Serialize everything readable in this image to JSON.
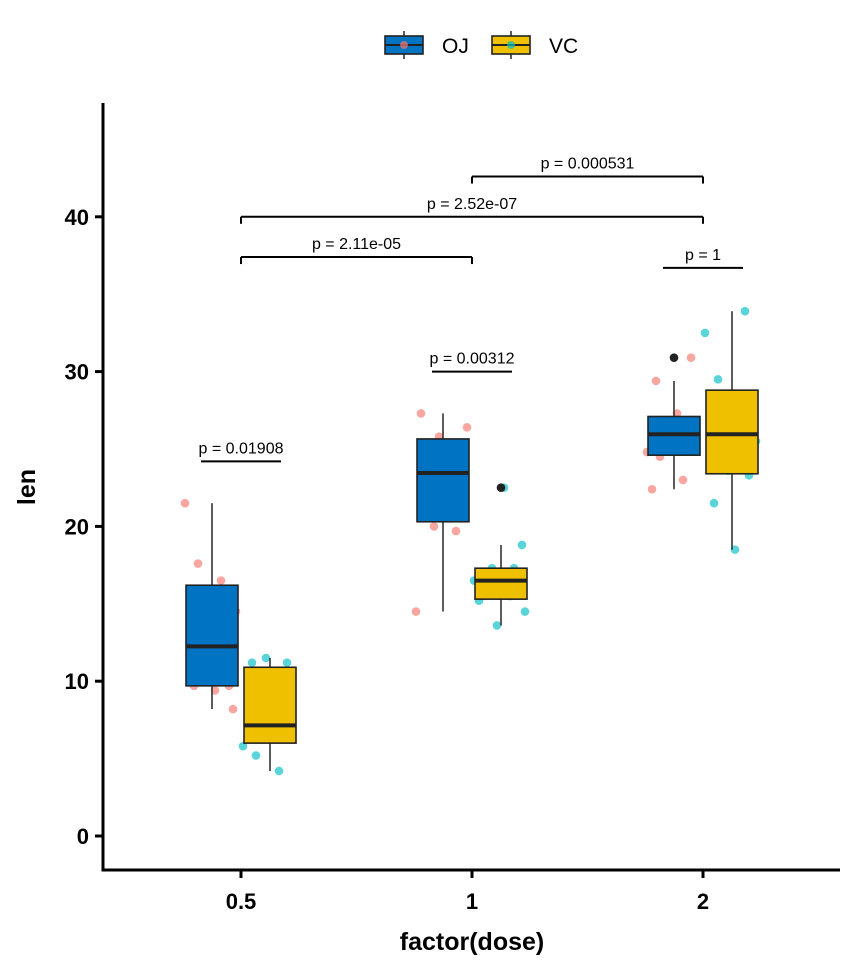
{
  "chart_data": {
    "type": "boxplot",
    "title": "",
    "xlabel": "factor(dose)",
    "ylabel": "len",
    "ylim": [
      -2.2,
      47.5
    ],
    "yticks": [
      0,
      10,
      20,
      30,
      40
    ],
    "categories": [
      "0.5",
      "1",
      "2"
    ],
    "legend_position": "top",
    "series": [
      {
        "name": "OJ",
        "fill": "#0073C2",
        "point_color": "#F8766D",
        "boxes": [
          {
            "category": "0.5",
            "min": 8.2,
            "q1": 9.7,
            "median": 12.25,
            "q3": 16.2,
            "max": 21.5,
            "outliers": [],
            "points": [
              21.5,
              17.6,
              16.5,
              15.2,
              14.5,
              10.0,
              9.7,
              9.7,
              9.4,
              8.2
            ]
          },
          {
            "category": "1",
            "min": 14.5,
            "q1": 20.3,
            "median": 23.45,
            "q3": 25.65,
            "max": 27.3,
            "outliers": [],
            "points": [
              27.3,
              26.4,
              25.8,
              25.2,
              23.6,
              23.3,
              21.2,
              20.0,
              19.7,
              14.5
            ]
          },
          {
            "category": "2",
            "min": 22.4,
            "q1": 24.6,
            "median": 25.95,
            "q3": 27.1,
            "max": 29.4,
            "outliers": [
              30.9
            ],
            "points": [
              30.9,
              29.4,
              27.3,
              26.4,
              26.4,
              25.5,
              24.8,
              24.5,
              23.0,
              22.4
            ]
          }
        ]
      },
      {
        "name": "VC",
        "fill": "#EFC000",
        "point_color": "#00BFC4",
        "boxes": [
          {
            "category": "0.5",
            "min": 4.2,
            "q1": 6.0,
            "median": 7.15,
            "q3": 10.9,
            "max": 11.5,
            "outliers": [],
            "points": [
              11.5,
              11.2,
              11.2,
              10.0,
              7.3,
              7.0,
              6.4,
              5.8,
              5.2,
              4.2
            ]
          },
          {
            "category": "1",
            "min": 13.6,
            "q1": 15.3,
            "median": 16.5,
            "q3": 17.3,
            "max": 18.8,
            "outliers": [
              22.5
            ],
            "points": [
              22.5,
              18.8,
              17.3,
              17.3,
              16.5,
              16.5,
              15.5,
              15.2,
              14.5,
              13.6
            ]
          },
          {
            "category": "2",
            "min": 18.5,
            "q1": 23.4,
            "median": 25.95,
            "q3": 28.8,
            "max": 33.9,
            "outliers": [],
            "points": [
              33.9,
              32.5,
              29.5,
              26.7,
              26.4,
              25.5,
              23.6,
              23.3,
              21.5,
              18.5
            ]
          }
        ]
      }
    ],
    "annotations": [
      {
        "label": "p = 0.01908",
        "from": "0.5 OJ",
        "to": "0.5 VC",
        "y": 24.2
      },
      {
        "label": "p = 0.00312",
        "from": "1 OJ",
        "to": "1 VC",
        "y": 30.0
      },
      {
        "label": "p = 1",
        "from": "2 OJ",
        "to": "2 VC",
        "y": 36.7
      },
      {
        "label": "p = 2.11e-05",
        "from": "0.5",
        "to": "1",
        "y": 37.4
      },
      {
        "label": "p = 2.52e-07",
        "from": "0.5",
        "to": "2",
        "y": 40.0
      },
      {
        "label": "p = 0.000531",
        "from": "1",
        "to": "2",
        "y": 42.6
      }
    ]
  }
}
